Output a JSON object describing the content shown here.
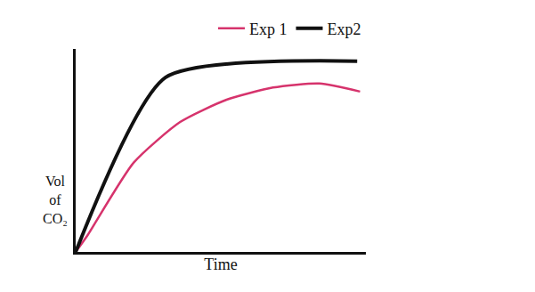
{
  "chart_data": {
    "type": "line",
    "x_label": "Time",
    "y_label": "Vol of CO₂",
    "xlim": [
      0,
      10
    ],
    "ylim": [
      0,
      10
    ],
    "grid": false,
    "tick_labels": false,
    "legend": "top right",
    "series": [
      {
        "name": "Exp 1",
        "color": "#d6336c",
        "x": [
          0,
          0.4,
          2,
          3.6,
          5.2,
          6.8,
          8.4,
          9.8
        ],
        "values": [
          0,
          0.8,
          4.4,
          6.4,
          7.5,
          8.1,
          8.3,
          7.9
        ]
      },
      {
        "name": "Exp2",
        "color": "#111111",
        "x": [
          0,
          3.1,
          9.7
        ],
        "values": [
          0,
          8.6,
          9.4
        ]
      }
    ]
  }
}
